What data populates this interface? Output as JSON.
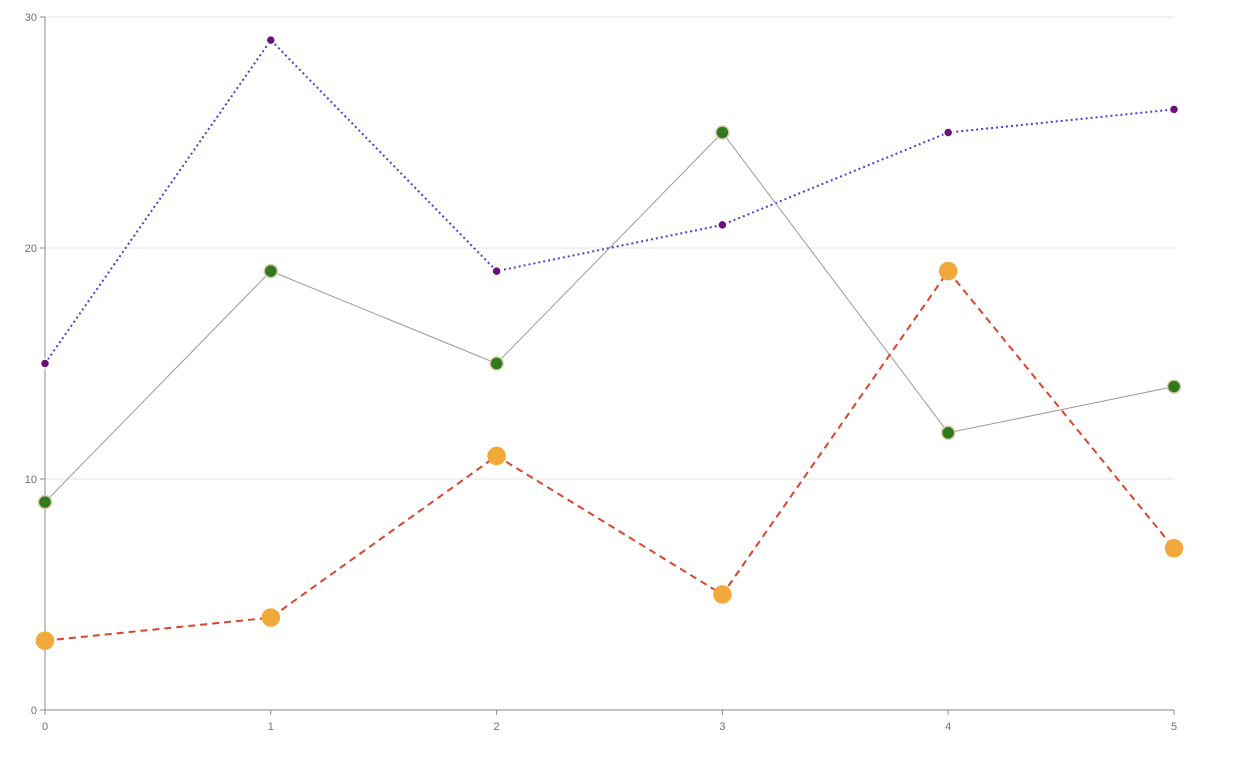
{
  "chart_data": {
    "type": "line",
    "title": "",
    "xlabel": "",
    "ylabel": "",
    "x": [
      0,
      1,
      2,
      3,
      4,
      5
    ],
    "xlim": [
      0,
      5
    ],
    "ylim": [
      0,
      30
    ],
    "x_ticks": [
      0,
      1,
      2,
      3,
      4,
      5
    ],
    "y_ticks": [
      0,
      10,
      20,
      30
    ],
    "grid": "horizontal",
    "legend": "none",
    "series": [
      {
        "values": [
          15,
          29,
          19,
          21,
          25,
          26
        ],
        "line_color": "#4a3fd6",
        "line_style": "dotted",
        "marker_color": "#6b0f7a",
        "marker_outline": "#ffffff",
        "marker_size": "small"
      },
      {
        "values": [
          9,
          19,
          15,
          25,
          12,
          14
        ],
        "line_color": "#9a9a9a",
        "line_style": "solid",
        "marker_color": "#2f7a1a",
        "marker_outline": "#d8c9b0",
        "marker_size": "medium"
      },
      {
        "values": [
          3,
          4,
          11,
          5,
          19,
          7
        ],
        "line_color": "#d9452c",
        "line_style": "dashed",
        "marker_color": "#f2a93b",
        "marker_outline": "#f2a93b",
        "marker_size": "large"
      }
    ]
  }
}
